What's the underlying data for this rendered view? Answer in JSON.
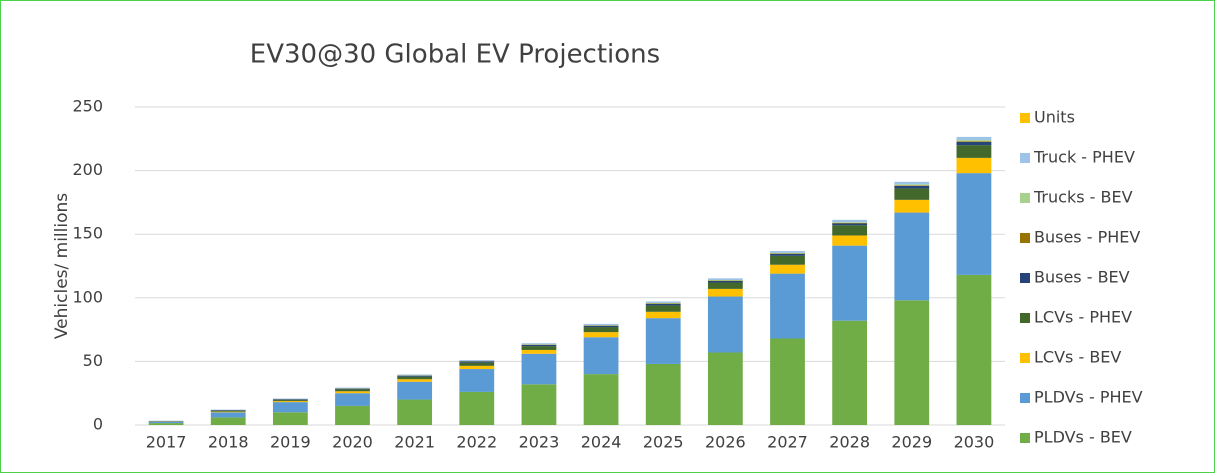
{
  "chart_data": {
    "type": "stacked_bar",
    "title": "EV30@30 Global EV Projections",
    "y_label": "Vehicles/ millions",
    "categories": [
      "2017",
      "2018",
      "2019",
      "2020",
      "2021",
      "2022",
      "2023",
      "2024",
      "2025",
      "2026",
      "2027",
      "2028",
      "2029",
      "2030"
    ],
    "ylim": [
      0,
      250
    ],
    "yticks": [
      0,
      50,
      100,
      150,
      200,
      250
    ],
    "grid": true,
    "legend": "right",
    "series": [
      {
        "name": "PLDVs - BEV",
        "color": "#70ad47",
        "values": [
          1.5,
          6,
          10,
          15,
          20,
          26,
          32,
          40,
          48,
          57,
          68,
          82,
          98,
          118
        ]
      },
      {
        "name": "PLDVs - PHEV",
        "color": "#5b9bd5",
        "values": [
          1,
          4,
          8,
          10,
          14,
          18,
          24,
          29,
          36,
          44,
          51,
          59,
          69,
          80
        ]
      },
      {
        "name": "LCVs - BEV",
        "color": "#ffc000",
        "values": [
          0.1,
          0.5,
          0.8,
          1.5,
          2,
          2.5,
          3,
          4,
          5,
          6,
          7,
          8,
          10,
          12
        ]
      },
      {
        "name": "LCVs - PHEV",
        "color": "#43682b",
        "values": [
          0.1,
          0.5,
          0.8,
          1.5,
          2,
          2.5,
          3,
          4,
          5,
          5,
          7,
          8,
          9,
          10
        ]
      },
      {
        "name": "Buses - BEV",
        "color": "#264478",
        "values": [
          0.3,
          0.6,
          0.6,
          0.6,
          0.8,
          1,
          1,
          1,
          1.2,
          1.2,
          1.5,
          1.5,
          2,
          2.5
        ]
      },
      {
        "name": "Buses - PHEV",
        "color": "#997300",
        "values": [
          0.1,
          0.1,
          0.1,
          0.1,
          0.1,
          0.2,
          0.2,
          0.2,
          0.3,
          0.3,
          0.3,
          0.4,
          0.4,
          0.5
        ]
      },
      {
        "name": "Trucks - BEV",
        "color": "#a9d18e",
        "values": [
          0.1,
          0.1,
          0.1,
          0.2,
          0.2,
          0.2,
          0.3,
          0.3,
          0.4,
          0.5,
          0.5,
          0.6,
          0.8,
          1
        ]
      },
      {
        "name": "Truck - PHEV",
        "color": "#9dc3e6",
        "values": [
          0.2,
          0.3,
          0.4,
          0.5,
          0.6,
          0.7,
          0.8,
          1,
          1.2,
          1.3,
          1.5,
          1.8,
          2,
          2.5
        ]
      },
      {
        "name": "Units",
        "color": "#ffc000",
        "values": [
          0,
          0,
          0,
          0,
          0,
          0,
          0,
          0,
          0,
          0,
          0,
          0,
          0,
          0
        ]
      }
    ]
  }
}
